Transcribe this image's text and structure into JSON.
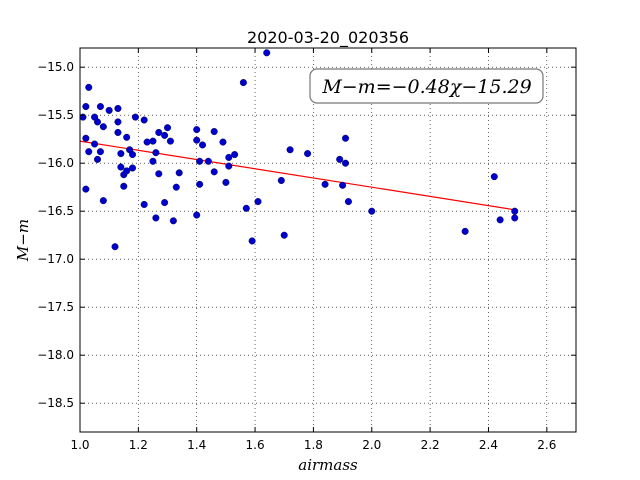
{
  "chart_data": {
    "type": "scatter",
    "title": "2020-03-20_020356",
    "xlabel": "airmass",
    "ylabel": "M−m",
    "xlim": [
      1.0,
      2.7
    ],
    "ylim": [
      -18.8,
      -14.8
    ],
    "y_inverted": true,
    "grid": true,
    "x_ticks": [
      1.0,
      1.2,
      1.4,
      1.6,
      1.8,
      2.0,
      2.2,
      2.4,
      2.6
    ],
    "x_tick_labels": [
      "1.0",
      "1.2",
      "1.4",
      "1.6",
      "1.8",
      "2.0",
      "2.2",
      "2.4",
      "2.6"
    ],
    "y_ticks": [
      -15.0,
      -15.5,
      -16.0,
      -16.5,
      -17.0,
      -17.5,
      -18.0,
      -18.5
    ],
    "y_tick_labels": [
      "−15.0",
      "−15.5",
      "−16.0",
      "−16.5",
      "−17.0",
      "−17.5",
      "−18.0",
      "−18.5"
    ],
    "annotation": "M−m=−0.48χ−15.29",
    "annotation_position": "top-right",
    "fit": {
      "slope": -0.48,
      "intercept": -15.29,
      "x_range": [
        1.0,
        2.5
      ],
      "color": "#ff0000"
    },
    "point_color": "#0000cc",
    "points": [
      [
        1.01,
        -15.52
      ],
      [
        1.02,
        -15.41
      ],
      [
        1.03,
        -15.21
      ],
      [
        1.02,
        -15.74
      ],
      [
        1.03,
        -15.88
      ],
      [
        1.02,
        -16.27
      ],
      [
        1.05,
        -15.52
      ],
      [
        1.06,
        -15.57
      ],
      [
        1.05,
        -15.8
      ],
      [
        1.06,
        -15.96
      ],
      [
        1.07,
        -15.88
      ],
      [
        1.07,
        -15.41
      ],
      [
        1.08,
        -15.62
      ],
      [
        1.08,
        -16.39
      ],
      [
        1.1,
        -15.45
      ],
      [
        1.12,
        -16.87
      ],
      [
        1.13,
        -15.43
      ],
      [
        1.13,
        -15.57
      ],
      [
        1.13,
        -15.68
      ],
      [
        1.14,
        -15.9
      ],
      [
        1.14,
        -16.04
      ],
      [
        1.15,
        -16.12
      ],
      [
        1.15,
        -16.24
      ],
      [
        1.16,
        -16.08
      ],
      [
        1.16,
        -15.73
      ],
      [
        1.17,
        -15.86
      ],
      [
        1.18,
        -16.05
      ],
      [
        1.18,
        -15.91
      ],
      [
        1.19,
        -15.52
      ],
      [
        1.22,
        -15.55
      ],
      [
        1.22,
        -16.43
      ],
      [
        1.23,
        -15.78
      ],
      [
        1.25,
        -15.77
      ],
      [
        1.25,
        -15.98
      ],
      [
        1.26,
        -15.89
      ],
      [
        1.26,
        -16.57
      ],
      [
        1.27,
        -15.68
      ],
      [
        1.27,
        -16.11
      ],
      [
        1.29,
        -15.71
      ],
      [
        1.3,
        -15.63
      ],
      [
        1.29,
        -16.41
      ],
      [
        1.31,
        -15.77
      ],
      [
        1.32,
        -16.6
      ],
      [
        1.33,
        -16.25
      ],
      [
        1.34,
        -16.1
      ],
      [
        1.4,
        -15.65
      ],
      [
        1.4,
        -15.76
      ],
      [
        1.41,
        -15.98
      ],
      [
        1.41,
        -16.22
      ],
      [
        1.4,
        -16.54
      ],
      [
        1.42,
        -15.81
      ],
      [
        1.44,
        -15.98
      ],
      [
        1.46,
        -15.67
      ],
      [
        1.46,
        -16.09
      ],
      [
        1.49,
        -15.78
      ],
      [
        1.5,
        -16.2
      ],
      [
        1.51,
        -15.94
      ],
      [
        1.51,
        -16.03
      ],
      [
        1.53,
        -15.91
      ],
      [
        1.56,
        -15.16
      ],
      [
        1.57,
        -16.47
      ],
      [
        1.59,
        -16.81
      ],
      [
        1.61,
        -16.4
      ],
      [
        1.64,
        -14.85
      ],
      [
        1.69,
        -16.18
      ],
      [
        1.7,
        -16.75
      ],
      [
        1.72,
        -15.86
      ],
      [
        1.78,
        -15.9
      ],
      [
        1.84,
        -16.22
      ],
      [
        1.89,
        -15.96
      ],
      [
        1.9,
        -16.23
      ],
      [
        1.91,
        -15.74
      ],
      [
        1.91,
        -16.0
      ],
      [
        1.92,
        -16.4
      ],
      [
        2.0,
        -16.5
      ],
      [
        2.32,
        -16.71
      ],
      [
        2.42,
        -16.14
      ],
      [
        2.44,
        -16.59
      ],
      [
        2.49,
        -16.57
      ],
      [
        2.49,
        -16.5
      ]
    ]
  }
}
